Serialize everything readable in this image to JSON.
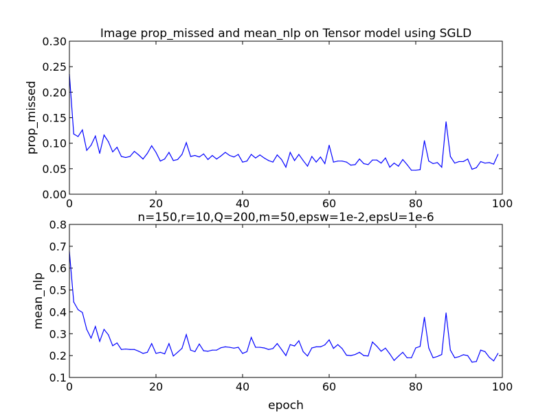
{
  "chart_data": [
    {
      "type": "line",
      "title": "Image prop_missed and mean_nlp on Tensor model using SGLD",
      "xlabel": "",
      "ylabel": "prop_missed",
      "xlim": [
        0,
        100
      ],
      "ylim": [
        0.0,
        0.3
      ],
      "xticks": [
        "0",
        "20",
        "40",
        "60",
        "80",
        "100"
      ],
      "yticks": [
        "0.00",
        "0.05",
        "0.10",
        "0.15",
        "0.20",
        "0.25",
        "0.30"
      ],
      "grid": false,
      "color": "#0000ff",
      "x": [
        0,
        1,
        2,
        3,
        4,
        5,
        6,
        7,
        8,
        9,
        10,
        11,
        12,
        13,
        14,
        15,
        16,
        17,
        18,
        19,
        20,
        21,
        22,
        23,
        24,
        25,
        26,
        27,
        28,
        29,
        30,
        31,
        32,
        33,
        34,
        35,
        36,
        37,
        38,
        39,
        40,
        41,
        42,
        43,
        44,
        45,
        46,
        47,
        48,
        49,
        50,
        51,
        52,
        53,
        54,
        55,
        56,
        57,
        58,
        59,
        60,
        61,
        62,
        63,
        64,
        65,
        66,
        67,
        68,
        69,
        70,
        71,
        72,
        73,
        74,
        75,
        76,
        77,
        78,
        79,
        80,
        81,
        82,
        83,
        84,
        85,
        86,
        87,
        88,
        89,
        90,
        91,
        92,
        93,
        94,
        95,
        96,
        97,
        98,
        99
      ],
      "y": [
        0.235,
        0.118,
        0.113,
        0.126,
        0.086,
        0.096,
        0.114,
        0.08,
        0.116,
        0.103,
        0.083,
        0.092,
        0.074,
        0.072,
        0.074,
        0.084,
        0.077,
        0.069,
        0.08,
        0.095,
        0.082,
        0.065,
        0.069,
        0.082,
        0.066,
        0.068,
        0.078,
        0.101,
        0.074,
        0.076,
        0.073,
        0.079,
        0.068,
        0.076,
        0.069,
        0.075,
        0.082,
        0.076,
        0.073,
        0.078,
        0.063,
        0.065,
        0.078,
        0.071,
        0.077,
        0.071,
        0.066,
        0.063,
        0.077,
        0.068,
        0.053,
        0.082,
        0.066,
        0.078,
        0.066,
        0.055,
        0.074,
        0.063,
        0.073,
        0.06,
        0.096,
        0.063,
        0.065,
        0.065,
        0.063,
        0.057,
        0.058,
        0.069,
        0.06,
        0.058,
        0.067,
        0.067,
        0.061,
        0.071,
        0.053,
        0.061,
        0.055,
        0.068,
        0.058,
        0.047,
        0.047,
        0.048,
        0.105,
        0.065,
        0.06,
        0.062,
        0.053,
        0.142,
        0.074,
        0.061,
        0.064,
        0.064,
        0.069,
        0.049,
        0.052,
        0.064,
        0.061,
        0.062,
        0.059,
        0.078
      ]
    },
    {
      "type": "line",
      "title": "n=150,r=10,Q=200,m=50,epsw=1e-2,epsU=1e-6",
      "xlabel": "epoch",
      "ylabel": "mean_nlp",
      "xlim": [
        0,
        100
      ],
      "ylim": [
        0.1,
        0.8
      ],
      "xticks": [
        "0",
        "20",
        "40",
        "60",
        "80",
        "100"
      ],
      "yticks": [
        "0.1",
        "0.2",
        "0.3",
        "0.4",
        "0.5",
        "0.6",
        "0.7",
        "0.8"
      ],
      "grid": false,
      "color": "#0000ff",
      "x": [
        0,
        1,
        2,
        3,
        4,
        5,
        6,
        7,
        8,
        9,
        10,
        11,
        12,
        13,
        14,
        15,
        16,
        17,
        18,
        19,
        20,
        21,
        22,
        23,
        24,
        25,
        26,
        27,
        28,
        29,
        30,
        31,
        32,
        33,
        34,
        35,
        36,
        37,
        38,
        39,
        40,
        41,
        42,
        43,
        44,
        45,
        46,
        47,
        48,
        49,
        50,
        51,
        52,
        53,
        54,
        55,
        56,
        57,
        58,
        59,
        60,
        61,
        62,
        63,
        64,
        65,
        66,
        67,
        68,
        69,
        70,
        71,
        72,
        73,
        74,
        75,
        76,
        77,
        78,
        79,
        80,
        81,
        82,
        83,
        84,
        85,
        86,
        87,
        88,
        89,
        90,
        91,
        92,
        93,
        94,
        95,
        96,
        97,
        98,
        99
      ],
      "y": [
        0.675,
        0.445,
        0.41,
        0.397,
        0.32,
        0.28,
        0.333,
        0.265,
        0.32,
        0.295,
        0.245,
        0.258,
        0.228,
        0.23,
        0.228,
        0.228,
        0.22,
        0.21,
        0.215,
        0.255,
        0.21,
        0.215,
        0.208,
        0.255,
        0.198,
        0.215,
        0.233,
        0.296,
        0.225,
        0.218,
        0.253,
        0.222,
        0.22,
        0.225,
        0.225,
        0.236,
        0.24,
        0.238,
        0.234,
        0.238,
        0.21,
        0.218,
        0.283,
        0.238,
        0.238,
        0.235,
        0.228,
        0.232,
        0.255,
        0.228,
        0.2,
        0.25,
        0.244,
        0.268,
        0.218,
        0.198,
        0.235,
        0.24,
        0.24,
        0.249,
        0.272,
        0.233,
        0.25,
        0.232,
        0.202,
        0.2,
        0.205,
        0.215,
        0.2,
        0.198,
        0.262,
        0.243,
        0.22,
        0.234,
        0.208,
        0.178,
        0.197,
        0.215,
        0.19,
        0.19,
        0.235,
        0.242,
        0.375,
        0.235,
        0.19,
        0.196,
        0.205,
        0.395,
        0.225,
        0.19,
        0.195,
        0.204,
        0.2,
        0.17,
        0.173,
        0.225,
        0.218,
        0.192,
        0.176,
        0.21
      ]
    }
  ]
}
